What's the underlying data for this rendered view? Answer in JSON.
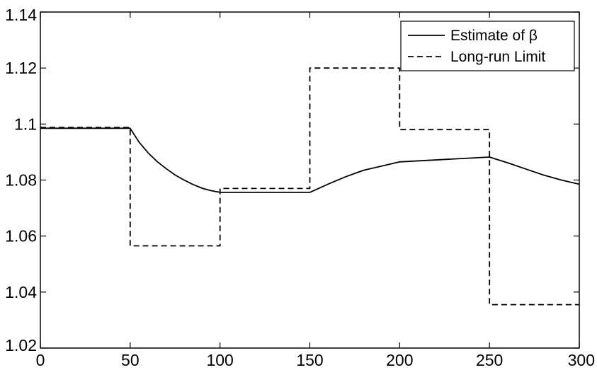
{
  "chart_data": {
    "type": "line",
    "title": "",
    "xlabel": "",
    "ylabel": "",
    "xlim": [
      0,
      300
    ],
    "ylim": [
      1.02,
      1.14
    ],
    "grid": false,
    "legend_position": "top-right",
    "x_ticks": [
      0,
      50,
      100,
      150,
      200,
      250,
      300
    ],
    "x_tick_labels": [
      "0",
      "50",
      "100",
      "150",
      "200",
      "250",
      "300"
    ],
    "y_ticks": [
      1.02,
      1.04,
      1.06,
      1.08,
      1.1,
      1.12,
      1.14
    ],
    "y_tick_labels": [
      "1.02",
      "1.04",
      "1.06",
      "1.08",
      "1.1",
      "1.12",
      "1.14"
    ],
    "series": [
      {
        "name": "Estimate of β",
        "style": "solid",
        "color": "#000000",
        "x": [
          0,
          50,
          55,
          60,
          65,
          70,
          75,
          80,
          85,
          90,
          95,
          100,
          150,
          160,
          170,
          180,
          190,
          200,
          250,
          260,
          270,
          280,
          290,
          300
        ],
        "y": [
          1.0985,
          1.0985,
          1.0935,
          1.0897,
          1.0866,
          1.0841,
          1.0818,
          1.08,
          1.0784,
          1.0771,
          1.0762,
          1.0756,
          1.0756,
          1.0785,
          1.0812,
          1.0835,
          1.085,
          1.0865,
          1.0882,
          1.0862,
          1.084,
          1.0818,
          1.08,
          1.0785
        ]
      },
      {
        "name": "Long-run Limit",
        "style": "dashed",
        "color": "#000000",
        "x": [
          0,
          50,
          50,
          100,
          100,
          150,
          150,
          200,
          200,
          250,
          250,
          300
        ],
        "y": [
          1.0988,
          1.0988,
          1.0565,
          1.0565,
          1.077,
          1.077,
          1.12,
          1.12,
          1.098,
          1.098,
          1.0355,
          1.0355
        ]
      }
    ]
  }
}
